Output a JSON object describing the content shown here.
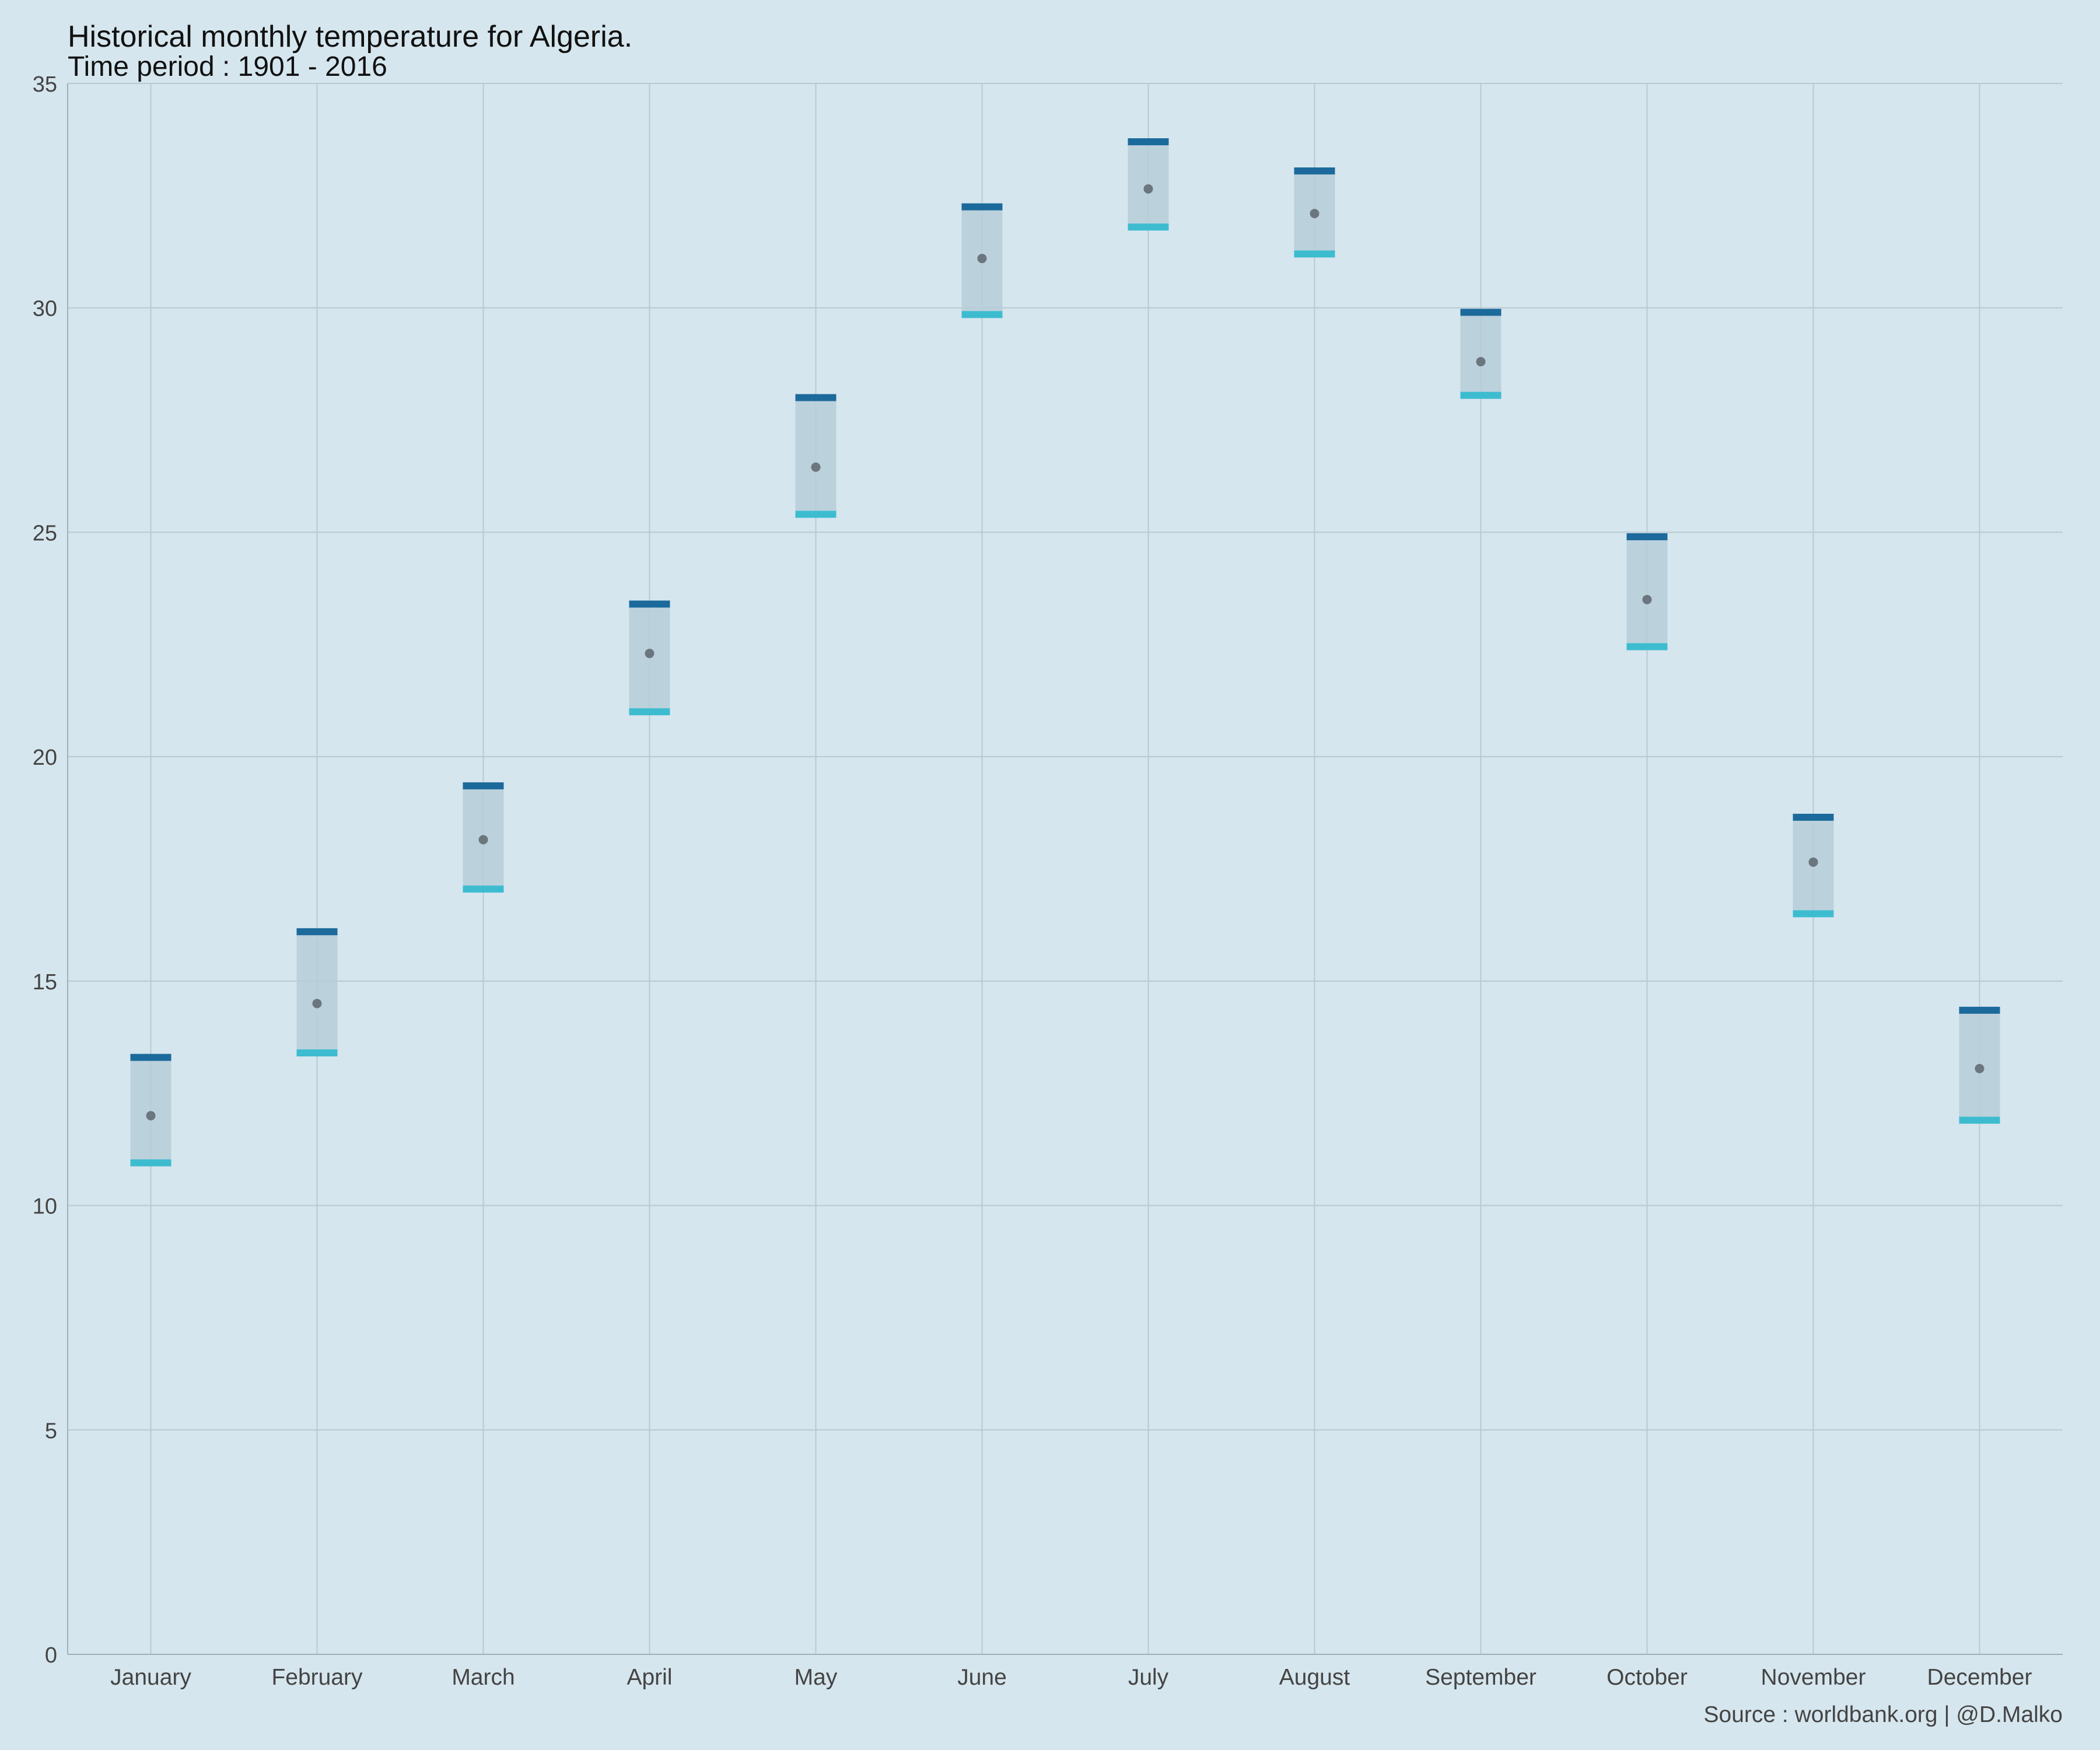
{
  "chart_data": {
    "type": "range",
    "title": "Historical monthly temperature for Algeria.",
    "subtitle": "Time period : 1901 - 2016",
    "source": "Source : worldbank.org | @D.Malko",
    "xlabel": "",
    "ylabel": "",
    "ylim": [
      0,
      35
    ],
    "yticks": [
      0,
      5,
      10,
      15,
      20,
      25,
      30,
      35
    ],
    "grid": true,
    "legend": "none",
    "categories": [
      "January",
      "February",
      "March",
      "April",
      "May",
      "June",
      "July",
      "August",
      "September",
      "October",
      "November",
      "December"
    ],
    "series": [
      {
        "role": "max",
        "values": [
          13.3,
          16.1,
          19.35,
          23.4,
          28.0,
          32.25,
          33.7,
          33.05,
          29.9,
          24.9,
          18.65,
          14.35
        ]
      },
      {
        "role": "mean",
        "values": [
          12.0,
          14.5,
          18.15,
          22.3,
          26.45,
          31.1,
          32.65,
          32.1,
          28.8,
          23.5,
          17.65,
          13.05
        ]
      },
      {
        "role": "min",
        "values": [
          10.95,
          13.4,
          17.05,
          21.0,
          25.4,
          29.85,
          31.8,
          31.2,
          28.05,
          22.45,
          16.5,
          11.9
        ]
      }
    ],
    "colors": {
      "background": "#d6e6ee",
      "grid": "#b9c9d2",
      "band": "#b6ccd8",
      "max": "#1b6a9b",
      "min": "#3dbcd0",
      "mean": "#6b767e",
      "axis": "#9fb0ba"
    }
  }
}
